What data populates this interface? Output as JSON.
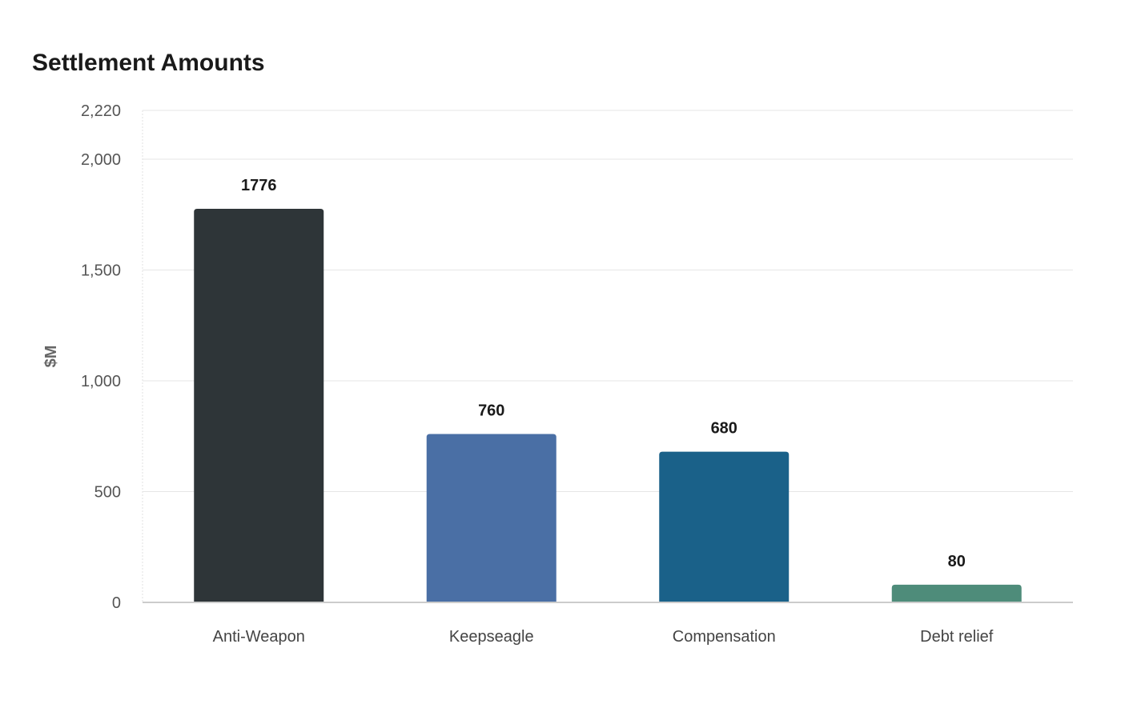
{
  "chart_data": {
    "type": "bar",
    "title": "Settlement Amounts",
    "xlabel": "",
    "ylabel": "$M",
    "categories": [
      "Anti-Weapon",
      "Keepseagle",
      "Compensation",
      "Debt relief"
    ],
    "values": [
      1776,
      760,
      680,
      80
    ],
    "value_labels": [
      "1776",
      "760",
      "680",
      "80"
    ],
    "colors": [
      "#2e3538",
      "#4a6fa5",
      "#1a6189",
      "#4e8c7a"
    ],
    "ylim": [
      0,
      2220
    ],
    "yticks": [
      0,
      500,
      1000,
      1500,
      2000,
      2220
    ],
    "ytick_labels": [
      "0",
      "500",
      "1,000",
      "1,500",
      "2,000",
      "2,220"
    ],
    "grid": true,
    "legend": "none"
  }
}
